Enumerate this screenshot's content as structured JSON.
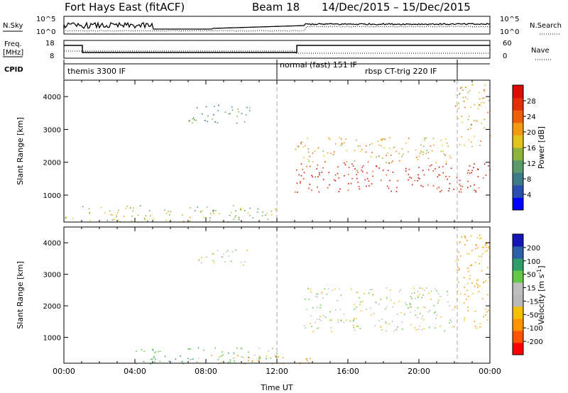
{
  "header": {
    "title": "Fort Hays East (fitACF)",
    "beam": "Beam 18",
    "date_range": "14/Dec/2015 – 15/Dec/2015"
  },
  "nsky_panel": {
    "left_label": "N.Sky",
    "left_tick_top": "10^5",
    "left_tick_bottom": "10^0",
    "right_label": "N.Search",
    "right_tick_top": "10^5",
    "right_tick_bottom": "10^0"
  },
  "freq_panel": {
    "label_line1": "Freq.",
    "label_line2": "[MHz]",
    "tick_top": "18",
    "tick_bottom": "8",
    "right_label": "Nave",
    "right_tick_top": "60",
    "right_tick_bottom": "0"
  },
  "cpid_panel": {
    "label": "CPID",
    "modes": [
      {
        "text": "themis 3300 IF"
      },
      {
        "text": "normal (fast) 151 IF"
      },
      {
        "text": "rbsp CT-trig 220 IF"
      }
    ]
  },
  "colors": {
    "power": [
      "#0000ff",
      "#2b4fb0",
      "#3d7a8a",
      "#5a9a6a",
      "#8db33c",
      "#e3c41c",
      "#f39a12",
      "#ef5e09",
      "#e32e06",
      "#d80d03"
    ],
    "velocity": [
      "#ff0000",
      "#ff5500",
      "#ff9400",
      "#f5c000",
      "#b8b8b8",
      "#bfbfbf",
      "#62c845",
      "#2e9e6b",
      "#2b5fa8",
      "#1515b8"
    ]
  },
  "chart_data": [
    {
      "type": "heatmap",
      "title": "",
      "xlabel": "",
      "ylabel": "Slant Range [km]",
      "x_ticks": [
        "00:00",
        "04:00",
        "08:00",
        "12:00",
        "16:00",
        "20:00",
        "00:00"
      ],
      "x_range_hours": [
        0,
        24
      ],
      "y_ticks": [
        1000,
        2000,
        3000,
        4000
      ],
      "ylim": [
        180,
        4500
      ],
      "colorbar": {
        "label": "Power [dB]",
        "ticks": [
          "4",
          "8",
          "12",
          "16",
          "20",
          "24",
          "28"
        ],
        "range": [
          0,
          30
        ]
      },
      "scatter_regions": [
        {
          "t_start": 0.0,
          "t_end": 12.0,
          "range_min": 180,
          "range_max": 700,
          "power": 14
        },
        {
          "t_start": 7.0,
          "t_end": 10.5,
          "range_min": 3200,
          "range_max": 3800,
          "power": 10
        },
        {
          "t_start": 13.0,
          "t_end": 24.0,
          "range_min": 1100,
          "range_max": 2000,
          "power": 28
        },
        {
          "t_start": 13.0,
          "t_end": 22.0,
          "range_min": 2000,
          "range_max": 2800,
          "power": 18
        },
        {
          "t_start": 22.0,
          "t_end": 24.0,
          "range_min": 2500,
          "range_max": 4400,
          "power": 18
        }
      ]
    },
    {
      "type": "heatmap",
      "title": "",
      "xlabel": "Time UT",
      "ylabel": "Slant Range [km]",
      "x_ticks": [
        "00:00",
        "04:00",
        "08:00",
        "12:00",
        "16:00",
        "20:00",
        "00:00"
      ],
      "x_range_hours": [
        0,
        24
      ],
      "y_ticks": [
        1000,
        2000,
        3000,
        4000
      ],
      "ylim": [
        180,
        4500
      ],
      "colorbar": {
        "label": "Velocity [m s^-1]",
        "label_parts": {
          "main": "Velocity [m s",
          "sup": "-1",
          "end": "]"
        },
        "ticks": [
          "-200",
          "-100",
          "-50",
          "-15",
          "15",
          "50",
          "100",
          "200"
        ],
        "range": [
          -250,
          250
        ]
      },
      "scatter_regions": [
        {
          "t_start": 4.0,
          "t_end": 12.0,
          "range_min": 180,
          "range_max": 700,
          "velocity": 40
        },
        {
          "t_start": 8.0,
          "t_end": 14.0,
          "range_min": 180,
          "range_max": 450,
          "velocity": -70
        },
        {
          "t_start": 7.5,
          "t_end": 10.5,
          "range_min": 3300,
          "range_max": 3800,
          "velocity": 0
        },
        {
          "t_start": 13.5,
          "t_end": 22.0,
          "range_min": 1200,
          "range_max": 2600,
          "velocity": 0
        },
        {
          "t_start": 22.0,
          "t_end": 24.0,
          "range_min": 1300,
          "range_max": 4300,
          "velocity": -60
        }
      ]
    }
  ]
}
